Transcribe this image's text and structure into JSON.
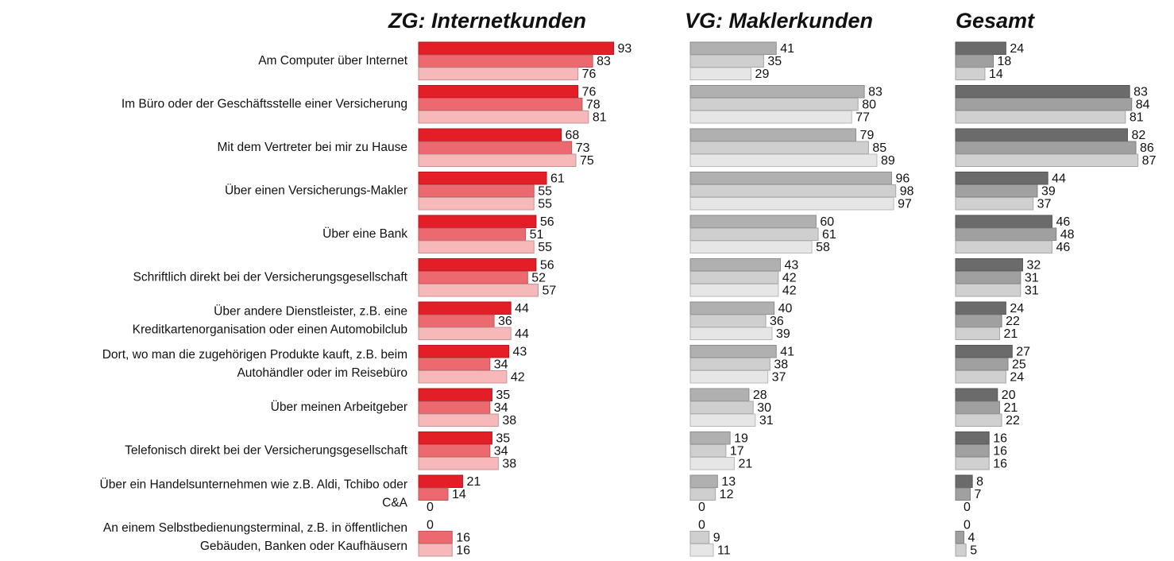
{
  "chart_data": [
    {
      "type": "bar",
      "orientation": "horizontal",
      "title": "ZG: Internetkunden",
      "categories": [
        [
          "Am Computer über Internet"
        ],
        [
          "Im Büro oder der Geschäftsstelle einer Versicherung"
        ],
        [
          "Mit dem Vertreter bei mir zu Hause"
        ],
        [
          "Über einen Versicherungs-Makler"
        ],
        [
          "Über eine Bank"
        ],
        [
          "Schriftlich direkt bei der Versicherungsgesellschaft"
        ],
        [
          "Über andere Dienstleister, z.B. eine",
          "Kreditkartenorganisation oder einen Automobilclub"
        ],
        [
          "Dort, wo man die zugehörigen Produkte kauft, z.B. beim",
          "Autohändler oder im Reisebüro"
        ],
        [
          "Über meinen Arbeitgeber"
        ],
        [
          "Telefonisch direkt bei der Versicherungsgesellschaft"
        ],
        [
          "Über ein Handelsunternehmen wie z.B. Aldi, Tchibo oder",
          "C&A"
        ],
        [
          "An einem Selbstbedienungsterminal, z.B. in öffentlichen",
          "Gebäuden, Banken oder Kaufhäusern"
        ]
      ],
      "series": [
        {
          "color": "#e41e26",
          "values": [
            93,
            76,
            68,
            61,
            56,
            56,
            44,
            43,
            35,
            35,
            21,
            0
          ]
        },
        {
          "color": "#ec6a6f",
          "values": [
            83,
            78,
            73,
            55,
            51,
            52,
            36,
            34,
            34,
            34,
            14,
            16
          ]
        },
        {
          "color": "#f7b8ba",
          "values": [
            76,
            81,
            75,
            55,
            55,
            57,
            44,
            42,
            38,
            38,
            0,
            16
          ]
        }
      ]
    },
    {
      "type": "bar",
      "orientation": "horizontal",
      "title": "VG: Maklerkunden",
      "series": [
        {
          "color": "#b0b0b0",
          "values": [
            41,
            83,
            79,
            96,
            60,
            43,
            40,
            41,
            28,
            19,
            13,
            0
          ]
        },
        {
          "color": "#cfcfcf",
          "values": [
            35,
            80,
            85,
            98,
            61,
            42,
            36,
            38,
            30,
            17,
            12,
            9
          ]
        },
        {
          "color": "#e6e6e6",
          "values": [
            29,
            77,
            89,
            97,
            58,
            42,
            39,
            37,
            31,
            21,
            0,
            11
          ]
        }
      ]
    },
    {
      "type": "bar",
      "orientation": "horizontal",
      "title": "Gesamt",
      "series": [
        {
          "color": "#6b6b6b",
          "values": [
            24,
            83,
            82,
            44,
            46,
            32,
            24,
            27,
            20,
            16,
            8,
            0
          ]
        },
        {
          "color": "#a0a0a0",
          "values": [
            18,
            84,
            86,
            39,
            48,
            31,
            22,
            25,
            21,
            16,
            7,
            4
          ]
        },
        {
          "color": "#d0d0d0",
          "values": [
            14,
            81,
            87,
            37,
            46,
            31,
            21,
            24,
            22,
            16,
            0,
            5
          ]
        }
      ]
    }
  ]
}
